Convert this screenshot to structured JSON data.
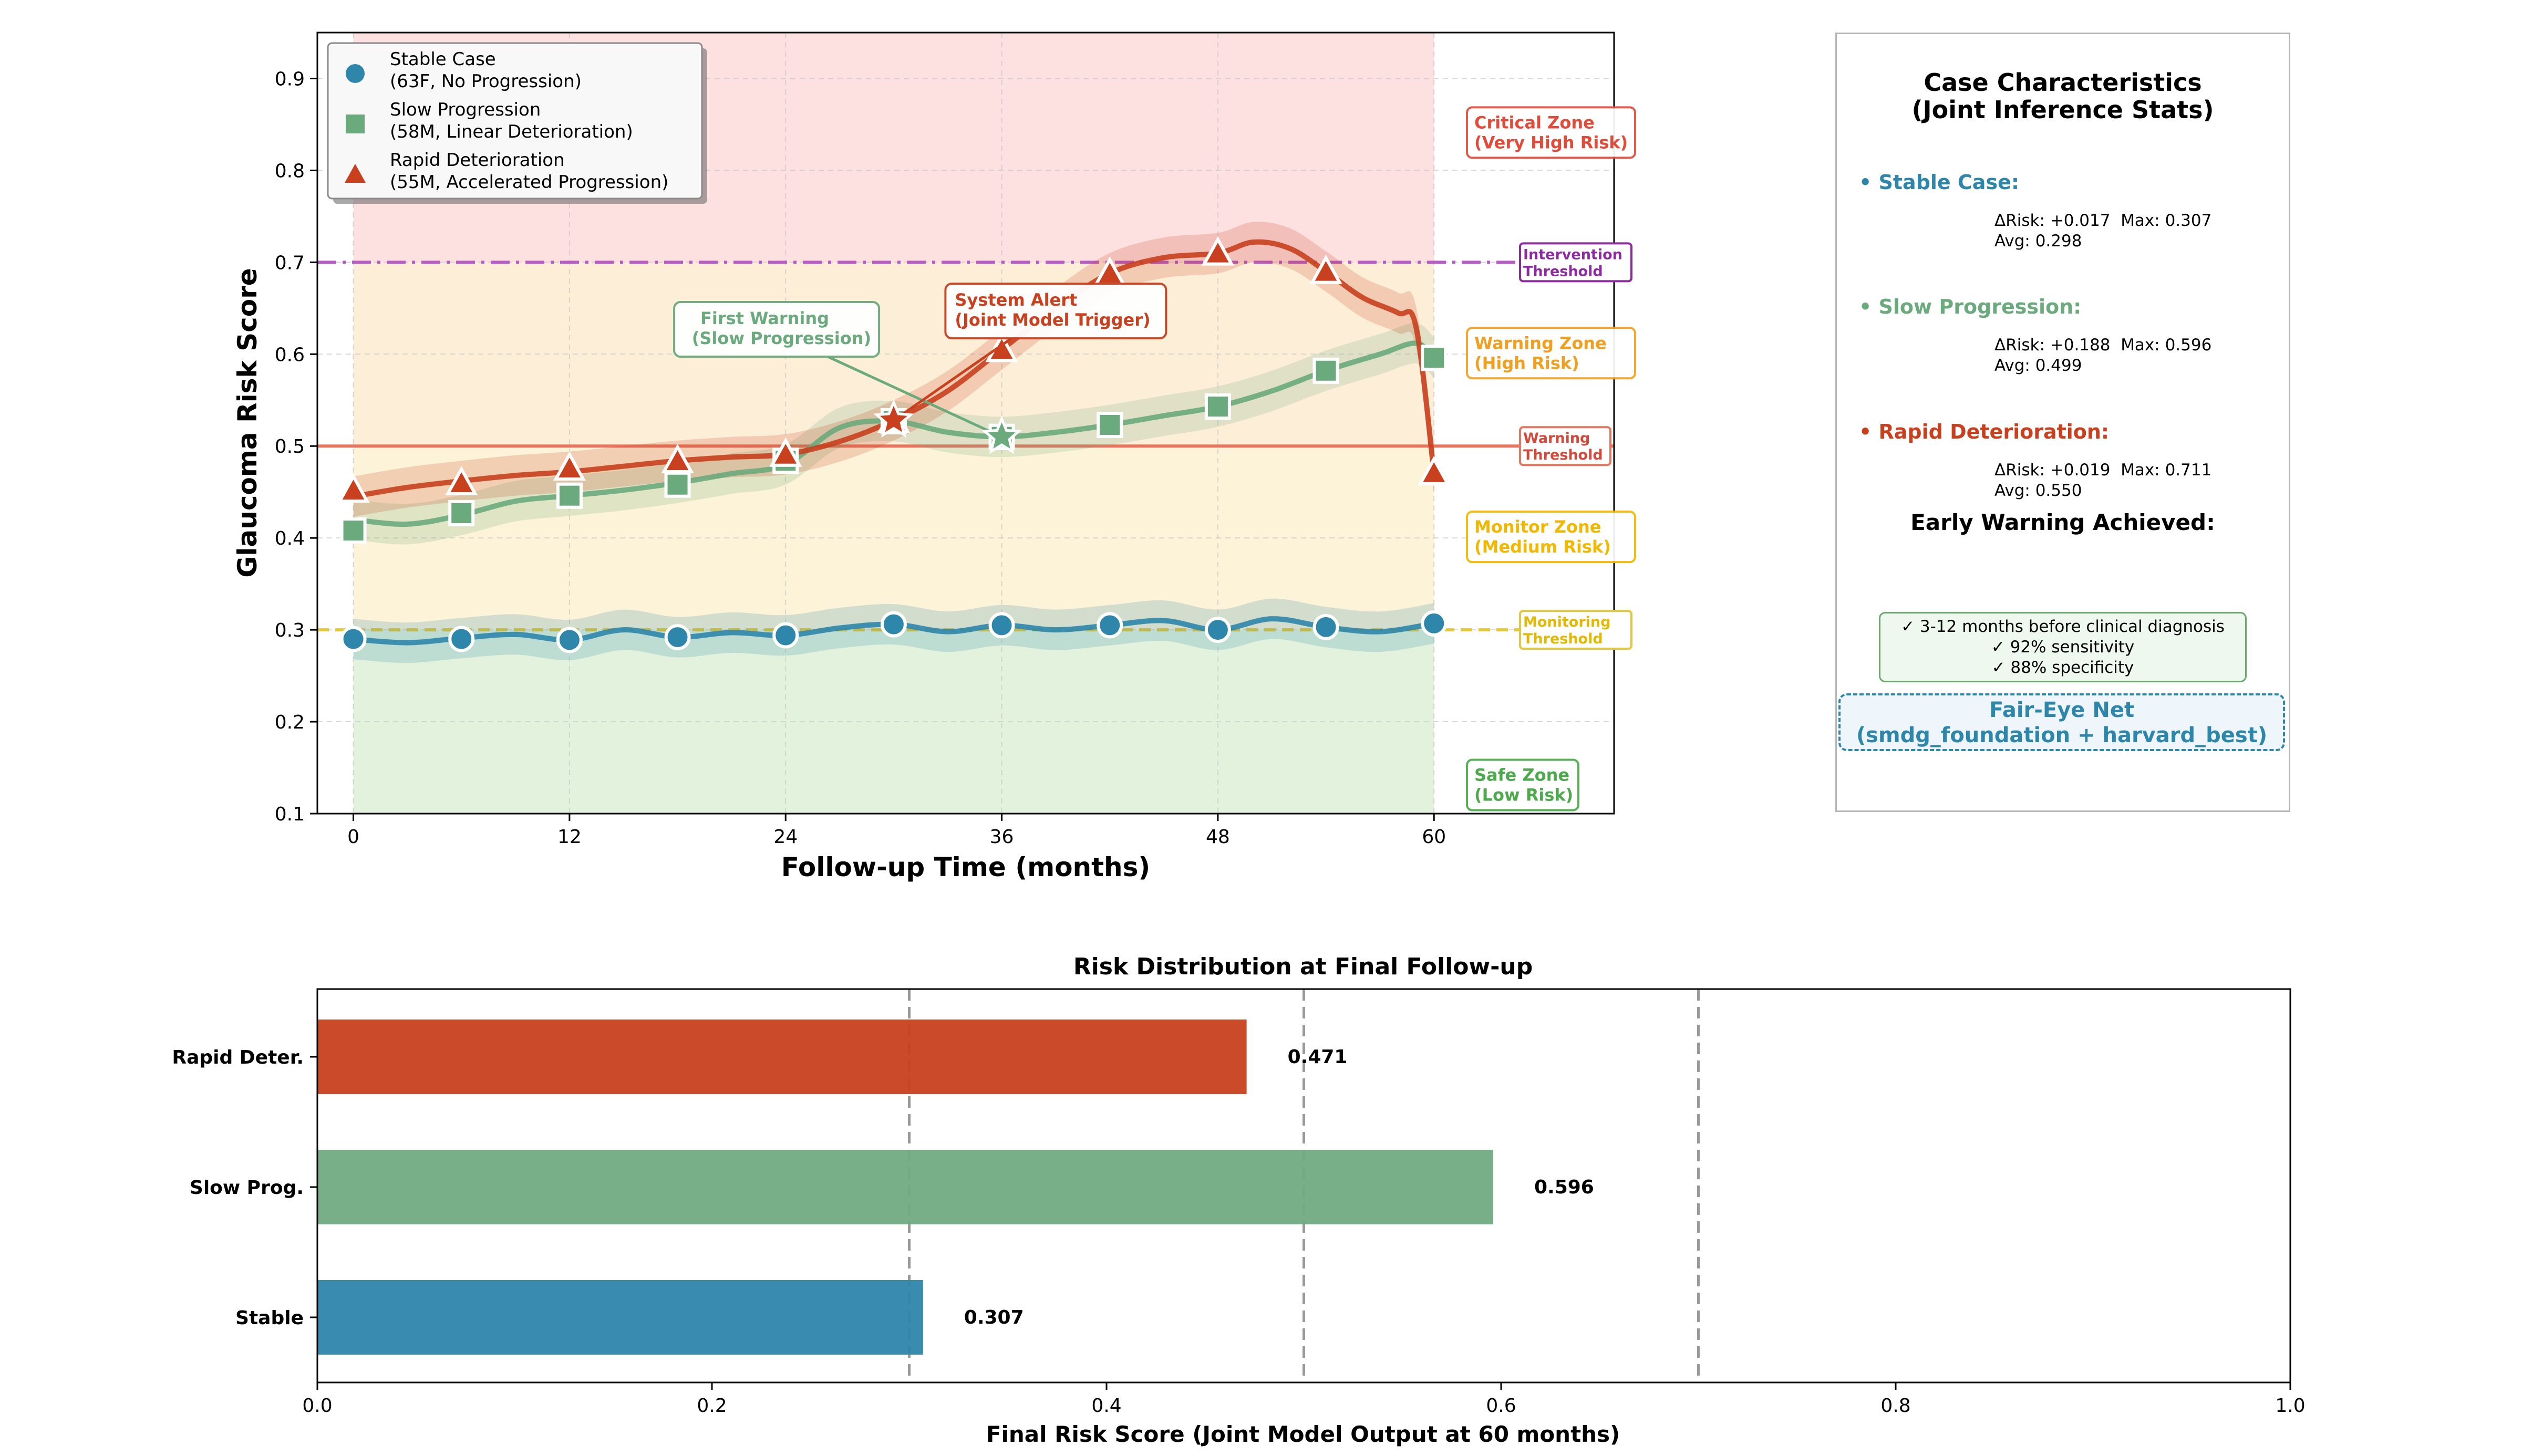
{
  "colors": {
    "stable": "#2e86ab",
    "slow": "#6aaa7c",
    "rapid": "#c8401e",
    "critical_zone": "#fde0e0",
    "warning_zone": "#fdeed8",
    "monitor_zone": "#fdf3d8",
    "safe_zone": "#e2f2dd",
    "intervention": "#b55cc5",
    "warning_line": "#e8765e",
    "monitoring_line": "#e3c73e"
  },
  "chart_data": [
    {
      "type": "line",
      "title": "",
      "xlabel": "Follow-up Time (months)",
      "ylabel": "Glaucoma Risk Score",
      "xlim": [
        -2,
        70
      ],
      "ylim": [
        0.1,
        0.95
      ],
      "xticks": [
        "0",
        "12",
        "24",
        "36",
        "48",
        "60"
      ],
      "xtick_values": [
        0,
        12,
        24,
        36,
        48,
        60
      ],
      "yticks": [
        "0.1",
        "0.2",
        "0.3",
        "0.4",
        "0.5",
        "0.6",
        "0.7",
        "0.8",
        "0.9"
      ],
      "ytick_values": [
        0.1,
        0.2,
        0.3,
        0.4,
        0.5,
        0.6,
        0.7,
        0.8,
        0.9
      ],
      "grid": true,
      "legend_position": "top-left",
      "series": [
        {
          "key": "stable",
          "name": "Stable Case",
          "legend_line1": "Stable Case",
          "legend_line2": "(63F, No Progression)",
          "marker": "circle",
          "marker_x": [
            0,
            6,
            12,
            18,
            24,
            30,
            36,
            42,
            48,
            54,
            60
          ],
          "marker_y": [
            0.29,
            0.29,
            0.289,
            0.292,
            0.294,
            0.306,
            0.305,
            0.305,
            0.3,
            0.303,
            0.307
          ],
          "curve_x": [
            0,
            3,
            6,
            9,
            12,
            15,
            18,
            21,
            24,
            27,
            30,
            33,
            36,
            39,
            42,
            45,
            48,
            51,
            54,
            57,
            60
          ],
          "curve_y": [
            0.29,
            0.286,
            0.291,
            0.295,
            0.289,
            0.3,
            0.292,
            0.297,
            0.294,
            0.302,
            0.306,
            0.298,
            0.305,
            0.3,
            0.305,
            0.31,
            0.3,
            0.312,
            0.303,
            0.298,
            0.307
          ]
        },
        {
          "key": "slow",
          "name": "Slow Progression",
          "legend_line1": "Slow Progression",
          "legend_line2": "(58M, Linear Deterioration)",
          "marker": "square",
          "marker_x": [
            0,
            6,
            12,
            18,
            24,
            30,
            36,
            42,
            48,
            54,
            60
          ],
          "marker_y": [
            0.408,
            0.427,
            0.446,
            0.458,
            0.484,
            0.527,
            0.51,
            0.523,
            0.543,
            0.582,
            0.596
          ],
          "curve_x": [
            0,
            3,
            6,
            9,
            12,
            15,
            18,
            21,
            24,
            27,
            30,
            33,
            36,
            39,
            42,
            45,
            48,
            51,
            54,
            57,
            59,
            60
          ],
          "curve_y": [
            0.42,
            0.415,
            0.425,
            0.44,
            0.446,
            0.452,
            0.46,
            0.47,
            0.48,
            0.52,
            0.527,
            0.515,
            0.51,
            0.515,
            0.523,
            0.533,
            0.543,
            0.56,
            0.582,
            0.6,
            0.612,
            0.596
          ]
        },
        {
          "key": "rapid",
          "name": "Rapid Deterioration",
          "legend_line1": "Rapid Deterioration",
          "legend_line2": "(55M, Accelerated Progression)",
          "marker": "triangle",
          "marker_x": [
            0,
            6,
            12,
            18,
            24,
            30,
            36,
            42,
            48,
            54,
            60
          ],
          "marker_y": [
            0.452,
            0.46,
            0.476,
            0.484,
            0.491,
            0.528,
            0.605,
            0.688,
            0.71,
            0.69,
            0.471
          ],
          "curve_x": [
            0,
            3,
            6,
            9,
            12,
            15,
            18,
            21,
            24,
            27,
            30,
            33,
            36,
            39,
            42,
            45,
            48,
            50,
            52,
            54,
            56,
            58,
            59,
            60
          ],
          "curve_y": [
            0.445,
            0.455,
            0.462,
            0.468,
            0.472,
            0.478,
            0.484,
            0.488,
            0.491,
            0.505,
            0.528,
            0.56,
            0.605,
            0.65,
            0.688,
            0.705,
            0.71,
            0.722,
            0.715,
            0.69,
            0.662,
            0.645,
            0.63,
            0.471
          ]
        }
      ],
      "thresholds": [
        {
          "key": "intervention",
          "y": 0.7,
          "label1": "Intervention",
          "label2": "Threshold",
          "style": "dashdot"
        },
        {
          "key": "warning_line",
          "y": 0.5,
          "label1": "Warning",
          "label2": "Threshold",
          "style": "solid"
        },
        {
          "key": "monitoring_line",
          "y": 0.3,
          "label1": "Monitoring",
          "label2": "Threshold",
          "style": "dashed"
        }
      ],
      "zones": [
        {
          "key": "critical_zone",
          "from": 0.7,
          "to": 0.95,
          "label1": "Critical Zone",
          "label2": "(Very High Risk)",
          "label_color": "#e04b3a",
          "label_y": 0.84
        },
        {
          "key": "warning_zone",
          "from": 0.5,
          "to": 0.7,
          "label1": "Warning Zone",
          "label2": "(High Risk)",
          "label_color": "#f0a020",
          "label_y": 0.6
        },
        {
          "key": "monitor_zone",
          "from": 0.3,
          "to": 0.5,
          "label1": "Monitor Zone",
          "label2": "(Medium Risk)",
          "label_color": "#f0b800",
          "label_y": 0.4
        },
        {
          "key": "safe_zone",
          "from": 0.1,
          "to": 0.3,
          "label1": "Safe Zone",
          "label2": "(Low Risk)",
          "label_color": "#4caa4c",
          "label_y": 0.13
        }
      ],
      "annotations": [
        {
          "key": "first_warning",
          "line1": "First Warning",
          "line2": "(Slow Progression)",
          "color": "#6aaa7c",
          "box_x": 23.5,
          "box_y": 0.627,
          "point_x": 36,
          "point_y": 0.51,
          "marker": "star"
        },
        {
          "key": "system_alert",
          "line1": "System Alert",
          "line2": "(Joint Model Trigger)",
          "color": "#c8401e",
          "box_x": 39,
          "box_y": 0.647,
          "point_x": 30,
          "point_y": 0.528,
          "marker": "star"
        }
      ]
    },
    {
      "type": "bar",
      "orientation": "horizontal",
      "title": "Risk Distribution at Final Follow-up",
      "xlabel": "Final Risk Score (Joint Model Output at 60 months)",
      "ylabel": "",
      "xlim": [
        0,
        1.0
      ],
      "xticks": [
        "0.0",
        "0.2",
        "0.4",
        "0.6",
        "0.8",
        "1.0"
      ],
      "xtick_values": [
        0,
        0.2,
        0.4,
        0.6,
        0.8,
        1.0
      ],
      "reference_lines": [
        0.3,
        0.5,
        0.7
      ],
      "categories": [
        "Rapid Deter.",
        "Slow Prog.",
        "Stable"
      ],
      "values": [
        0.471,
        0.596,
        0.307
      ],
      "value_labels": [
        "0.471",
        "0.596",
        "0.307"
      ],
      "bar_colors": [
        "#c8401e",
        "#72ab82",
        "#2e86ab"
      ]
    }
  ],
  "case_panel": {
    "title_line1": "Case Characteristics",
    "title_line2": "(Joint Inference Stats)",
    "cases": [
      {
        "key": "stable",
        "heading": "• Stable Case:",
        "line1": "ΔRisk: +0.017  Max: 0.307",
        "line2": "Avg: 0.298"
      },
      {
        "key": "slow",
        "heading": "• Slow Progression:",
        "line1": "ΔRisk: +0.188  Max: 0.596",
        "line2": "Avg: 0.499"
      },
      {
        "key": "rapid",
        "heading": "• Rapid Deterioration:",
        "line1": "ΔRisk: +0.019  Max: 0.711",
        "line2": "Avg: 0.550"
      }
    ],
    "early_warning_title": "Early Warning Achieved:",
    "early_warning_lines": [
      "✓ 3-12 months before clinical diagnosis",
      "✓ 92% sensitivity",
      "✓ 88% specificity"
    ],
    "model_line1": "Fair-Eye Net",
    "model_line2": "(smdg_foundation + harvard_best)"
  }
}
